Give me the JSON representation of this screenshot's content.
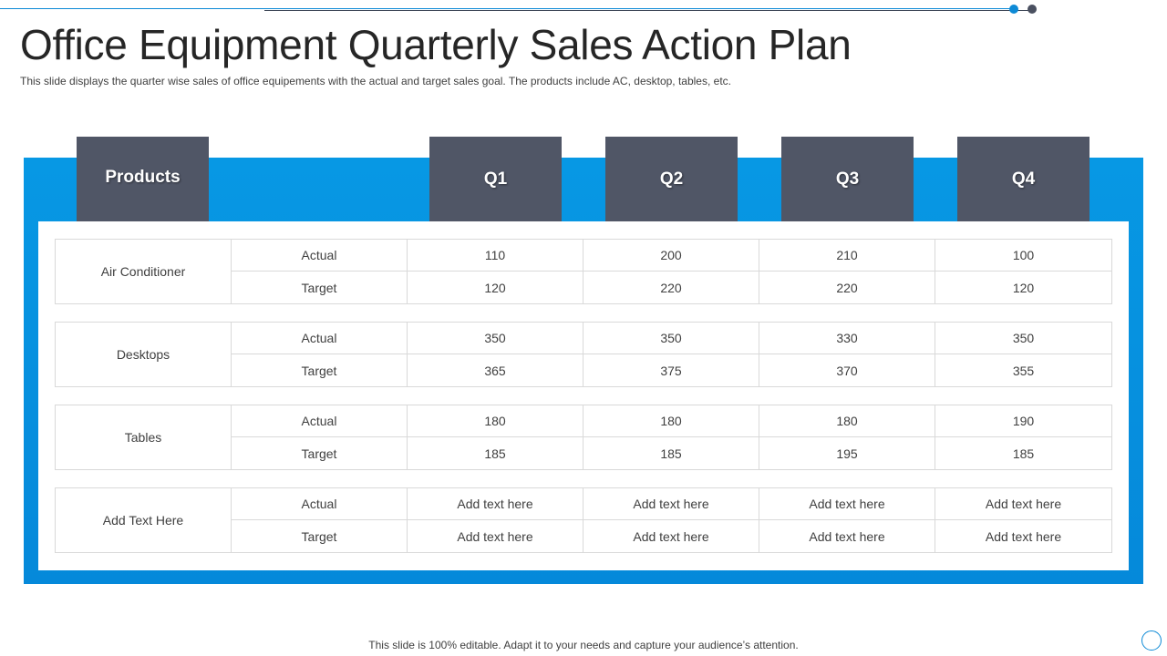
{
  "slide": {
    "title": "Office Equipment Quarterly Sales Action Plan",
    "subtitle": "This slide displays the quarter wise sales of office equipements with the actual and target sales goal. The products include AC, desktop, tables, etc.",
    "footer": "This slide is 100% editable. Adapt it to your needs and capture your audience’s attention."
  },
  "table": {
    "headers": {
      "products": "Products",
      "q1": "Q1",
      "q2": "Q2",
      "q3": "Q3",
      "q4": "Q4"
    },
    "groups": [
      {
        "product": "Air Conditioner",
        "rows": [
          {
            "label": "Actual",
            "q1": "110",
            "q2": "200",
            "q3": "210",
            "q4": "100"
          },
          {
            "label": "Target",
            "q1": "120",
            "q2": "220",
            "q3": "220",
            "q4": "120"
          }
        ]
      },
      {
        "product": "Desktops",
        "rows": [
          {
            "label": "Actual",
            "q1": "350",
            "q2": "350",
            "q3": "330",
            "q4": "350"
          },
          {
            "label": "Target",
            "q1": "365",
            "q2": "375",
            "q3": "370",
            "q4": "355"
          }
        ]
      },
      {
        "product": "Tables",
        "rows": [
          {
            "label": "Actual",
            "q1": "180",
            "q2": "180",
            "q3": "180",
            "q4": "190"
          },
          {
            "label": "Target",
            "q1": "185",
            "q2": "185",
            "q3": "195",
            "q4": "185"
          }
        ]
      },
      {
        "product": "Add Text Here",
        "rows": [
          {
            "label": "Actual",
            "q1": "Add text here",
            "q2": "Add text here",
            "q3": "Add text here",
            "q4": "Add text here"
          },
          {
            "label": "Target",
            "q1": "Add text here",
            "q2": "Add text here",
            "q3": "Add text here",
            "q4": "Add text here"
          }
        ]
      }
    ]
  },
  "colors": {
    "accent_blue": "#0798e4",
    "header_gray": "#505666",
    "border_gray": "#d9d9d9"
  }
}
